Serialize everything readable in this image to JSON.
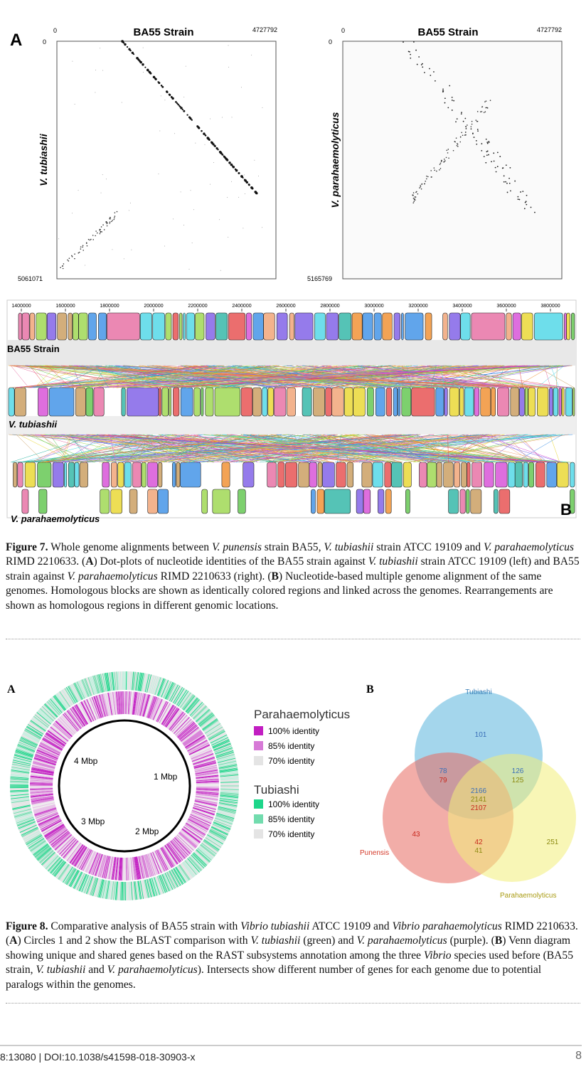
{
  "figure7": {
    "panel_a": {
      "letter": "A",
      "left_plot": {
        "top_title": "BA55 Strain",
        "top_start": "0",
        "top_end": "4727792",
        "side_title": "V. tubiashii",
        "side_start": "0",
        "side_end": "5061071"
      },
      "right_plot": {
        "top_title": "BA55 Strain",
        "top_start": "0",
        "top_end": "4727792",
        "side_title": "V. parahaemolyticus",
        "side_start": "0",
        "side_end": "5165769"
      }
    },
    "panel_b": {
      "letter": "B",
      "ruler": [
        "1400000",
        "1600000",
        "1800000",
        "2000000",
        "2200000",
        "2400000",
        "2600000",
        "2800000",
        "3000000",
        "3200000",
        "3400000",
        "3600000",
        "3800000"
      ],
      "genomes": [
        "BA55 Strain",
        "V. tubiashii",
        "V. parahaemolyticus"
      ]
    },
    "caption": [
      "Figure 7.",
      " Whole genome alignments between ",
      "V. punensis",
      " strain BA55, ",
      "V. tubiashii",
      " strain ATCC 19109 and ",
      "V. parahaemolyticus",
      " RIMD 2210633. (",
      "A",
      ") Dot-plots of nucleotide identities of the BA55 strain against ",
      "V. tubiashii",
      " strain ATCC 19109 (left) and BA55 strain against ",
      "V. parahaemolyticus",
      " RIMD 2210633 (right). (",
      "B",
      ") Nucleotide-based multiple genome alignment of the same genomes. Homologous blocks are shown as identically colored regions and linked across the genomes. Rearrangements are shown as homologous regions in different genomic locations."
    ]
  },
  "figure8": {
    "panel_a": {
      "letter": "A",
      "ring_labels": [
        "4 Mbp",
        "1 Mbp",
        "3 Mbp",
        "2 Mbp"
      ],
      "legend": [
        {
          "title": "Parahaemolyticus",
          "items": [
            "100% identity",
            "85% identity",
            "70% identity"
          ]
        },
        {
          "title": "Tubiashi",
          "items": [
            "100% identity",
            "85% identity",
            "70% identity"
          ]
        }
      ]
    },
    "panel_b": {
      "letter": "B",
      "sets": [
        "Tubiashi",
        "Punensis",
        "Parahaemolyticus"
      ],
      "counts": {
        "tubiashi_only": 101,
        "tubiashi_punensis": [
          78,
          79
        ],
        "tubiashi_parahaemolyticus": [
          126,
          125
        ],
        "all_three": [
          2166,
          2141,
          2107
        ],
        "punensis_only": 43,
        "punensis_parahaemolyticus": [
          42,
          41
        ],
        "parahaemolyticus_only": 251
      }
    },
    "caption": [
      "Figure 8.",
      " Comparative analysis of BA55 strain with ",
      "Vibrio tubiashii",
      " ATCC 19109 and ",
      "Vibrio parahaemolyticus",
      " RIMD 2210633. (",
      "A",
      ") Circles 1 and 2 show the BLAST comparison with ",
      "V. tubiashii",
      " (green) and ",
      "V. parahaemolyticus",
      " (purple). (",
      "B",
      ") Venn diagram showing unique and shared genes based on the RAST subsystems annotation among the three ",
      "Vibrio",
      " species used before (BA55 strain, ",
      "V. tubiashii",
      " and ",
      "V. parahaemolyticus",
      "). Intersects show different number of genes for each genome due to potential paralogs within the genomes."
    ]
  },
  "footer": {
    "citation": "8:13080 | DOI:10.1038/s41598-018-30903-x",
    "page": "8"
  }
}
